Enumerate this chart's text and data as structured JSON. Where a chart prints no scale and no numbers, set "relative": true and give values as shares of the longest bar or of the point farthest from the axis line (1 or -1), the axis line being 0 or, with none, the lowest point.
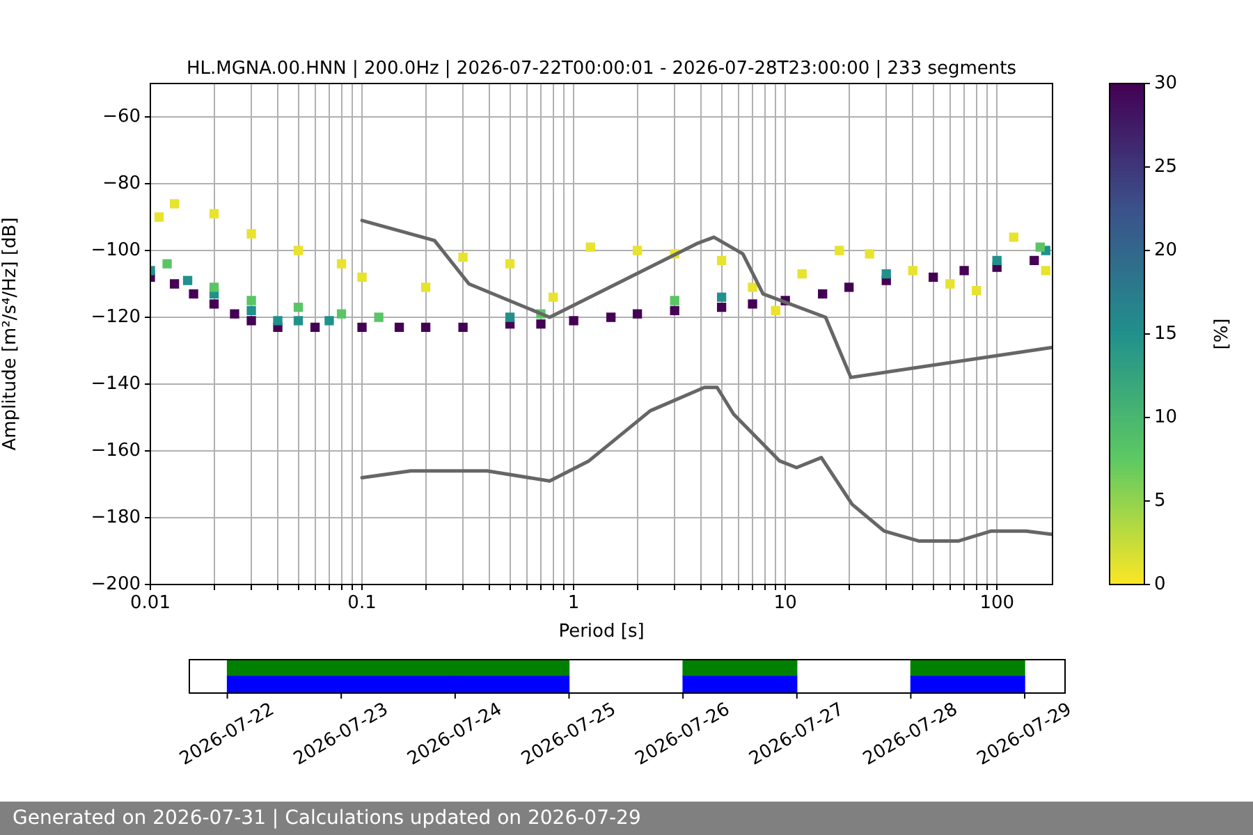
{
  "chart_data": [
    {
      "type": "scatter",
      "title": "HL.MGNA.00.HNN | 200.0Hz | 2026-07-22T00:00:01 - 2026-07-28T23:00:00 | 233 segments",
      "xlabel": "Period [s]",
      "ylabel": "Amplitude [m²/s⁴/Hz] [dB]",
      "clabel": "[%]",
      "log": "x",
      "grid": true,
      "xlim": [
        0.01,
        183
      ],
      "ylim": [
        -200,
        -50
      ],
      "xticks": [
        {
          "value": 0.01,
          "label": "0.01"
        },
        {
          "value": 0.02,
          "label": null
        },
        {
          "value": 0.03,
          "label": null
        },
        {
          "value": 0.04,
          "label": null
        },
        {
          "value": 0.05,
          "label": null
        },
        {
          "value": 0.06,
          "label": null
        },
        {
          "value": 0.07,
          "label": null
        },
        {
          "value": 0.08,
          "label": null
        },
        {
          "value": 0.09,
          "label": null
        },
        {
          "value": 0.1,
          "label": "0.1"
        },
        {
          "value": 0.2,
          "label": null
        },
        {
          "value": 0.3,
          "label": null
        },
        {
          "value": 0.4,
          "label": null
        },
        {
          "value": 0.5,
          "label": null
        },
        {
          "value": 0.6,
          "label": null
        },
        {
          "value": 0.7,
          "label": null
        },
        {
          "value": 0.8,
          "label": null
        },
        {
          "value": 0.9,
          "label": null
        },
        {
          "value": 1,
          "label": "1"
        },
        {
          "value": 2,
          "label": null
        },
        {
          "value": 3,
          "label": null
        },
        {
          "value": 4,
          "label": null
        },
        {
          "value": 5,
          "label": null
        },
        {
          "value": 6,
          "label": null
        },
        {
          "value": 7,
          "label": null
        },
        {
          "value": 8,
          "label": null
        },
        {
          "value": 9,
          "label": null
        },
        {
          "value": 10,
          "label": "10"
        },
        {
          "value": 20,
          "label": null
        },
        {
          "value": 30,
          "label": null
        },
        {
          "value": 40,
          "label": null
        },
        {
          "value": 50,
          "label": null
        },
        {
          "value": 60,
          "label": null
        },
        {
          "value": 70,
          "label": null
        },
        {
          "value": 80,
          "label": null
        },
        {
          "value": 90,
          "label": null
        },
        {
          "value": 100,
          "label": "100"
        }
      ],
      "yticks": [
        {
          "value": -200,
          "label": "−200"
        },
        {
          "value": -180,
          "label": "−180"
        },
        {
          "value": -160,
          "label": "−160"
        },
        {
          "value": -140,
          "label": "−140"
        },
        {
          "value": -120,
          "label": "−120"
        },
        {
          "value": -100,
          "label": "−100"
        },
        {
          "value": -80,
          "label": "−80"
        },
        {
          "value": -60,
          "label": "−60"
        }
      ],
      "clim": [
        0,
        30
      ],
      "cticks": [
        0,
        5,
        10,
        15,
        20,
        25,
        30
      ],
      "series": [
        {
          "type": "scatter",
          "marker": "square",
          "x": [
            0.01,
            0.013,
            0.016,
            0.02,
            0.025,
            0.03,
            0.04,
            0.06,
            0.1,
            0.15,
            0.2,
            0.3,
            0.5,
            0.7,
            1,
            1.5,
            2,
            3,
            5,
            7,
            10,
            15,
            20,
            30,
            50,
            70,
            100,
            150,
            0.01,
            0.015,
            0.02,
            0.03,
            0.04,
            0.05,
            0.07,
            0.5,
            5,
            30,
            100,
            170,
            0.012,
            0.02,
            0.03,
            0.05,
            0.08,
            0.12,
            0.7,
            3,
            160,
            0.011,
            0.013,
            0.02,
            0.03,
            0.05,
            0.08,
            0.1,
            0.2,
            0.3,
            0.5,
            0.8,
            1.2,
            2,
            3,
            5,
            7,
            9,
            12,
            18,
            25,
            40,
            60,
            80,
            120,
            170
          ],
          "values": [
            -108,
            -110,
            -113,
            -116,
            -119,
            -121,
            -123,
            -123,
            -123,
            -123,
            -123,
            -123,
            -122,
            -122,
            -121,
            -120,
            -119,
            -118,
            -117,
            -116,
            -115,
            -113,
            -111,
            -109,
            -108,
            -106,
            -105,
            -103,
            -106,
            -109,
            -113,
            -118,
            -121,
            -121,
            -121,
            -120,
            -114,
            -107,
            -103,
            -100,
            -104,
            -111,
            -115,
            -117,
            -119,
            -120,
            -119,
            -115,
            -99,
            -90,
            -86,
            -89,
            -95,
            -100,
            -104,
            -108,
            -111,
            -102,
            -104,
            -114,
            -99,
            -100,
            -101,
            -103,
            -111,
            -118,
            -107,
            -100,
            -101,
            -106,
            -110,
            -112,
            -96,
            -106
          ],
          "colors": [
            "#440154",
            "#440154",
            "#440154",
            "#440154",
            "#440154",
            "#440154",
            "#440154",
            "#440154",
            "#440154",
            "#440154",
            "#440154",
            "#440154",
            "#440154",
            "#440154",
            "#440154",
            "#440154",
            "#440154",
            "#440154",
            "#440154",
            "#440154",
            "#440154",
            "#440154",
            "#440154",
            "#440154",
            "#440154",
            "#440154",
            "#440154",
            "#440154",
            "#21918c",
            "#21918c",
            "#21918c",
            "#21918c",
            "#21918c",
            "#21918c",
            "#21918c",
            "#21918c",
            "#21918c",
            "#21918c",
            "#21918c",
            "#21918c",
            "#5ac565",
            "#5ac565",
            "#5ac565",
            "#5ac565",
            "#5ac565",
            "#5ac565",
            "#5ac565",
            "#5ac565",
            "#5ac565",
            "#e8e32d",
            "#e8e32d",
            "#e8e32d",
            "#e8e32d",
            "#e8e32d",
            "#e8e32d",
            "#e8e32d",
            "#e8e32d",
            "#e8e32d",
            "#e8e32d",
            "#e8e32d",
            "#e8e32d",
            "#e8e32d",
            "#e8e32d",
            "#e8e32d",
            "#e8e32d",
            "#e8e32d",
            "#e8e32d",
            "#e8e32d",
            "#e8e32d",
            "#e8e32d",
            "#e8e32d",
            "#e8e32d",
            "#e8e32d",
            "#e8e32d"
          ],
          "cvalues": [
            30,
            30,
            30,
            30,
            30,
            30,
            30,
            30,
            30,
            30,
            30,
            30,
            30,
            30,
            30,
            30,
            30,
            30,
            30,
            30,
            30,
            30,
            30,
            30,
            30,
            30,
            30,
            30,
            15,
            15,
            15,
            15,
            15,
            15,
            15,
            15,
            15,
            15,
            15,
            15,
            8,
            8,
            8,
            8,
            8,
            8,
            8,
            8,
            8,
            1,
            1,
            1,
            1,
            1,
            1,
            1,
            1,
            1,
            1,
            1,
            1,
            1,
            1,
            1,
            1,
            1,
            1,
            1,
            1,
            1,
            1,
            1,
            1,
            1
          ]
        },
        {
          "type": "line",
          "color": "#666666",
          "x": [
            0.1,
            0.22,
            0.32,
            0.77,
            3.8,
            4.6,
            6.3,
            7.85,
            15.5,
            20.4,
            183
          ],
          "values": [
            -91,
            -97,
            -110,
            -120,
            -98,
            -96,
            -101,
            -113,
            -120,
            -138,
            -129
          ]
        },
        {
          "type": "line",
          "color": "#666666",
          "x": [
            0.1,
            0.17,
            0.39,
            0.77,
            1.18,
            2.3,
            4.15,
            4.76,
            5.7,
            9.4,
            11.3,
            14.8,
            20.7,
            29.3,
            42.9,
            65.5,
            94,
            137,
            183
          ],
          "values": [
            -168,
            -166,
            -166,
            -169,
            -163,
            -148,
            -141,
            -141,
            -149,
            -163,
            -165,
            -162,
            -176,
            -184,
            -187,
            -187,
            -184,
            -184,
            -185
          ]
        }
      ]
    },
    {
      "type": "bar",
      "stacked": true,
      "relative": true,
      "x": [
        "2026-07-22T12:00",
        "2026-07-23T12:00",
        "2026-07-24T12:00",
        "2026-07-26T12:00",
        "2026-07-28T12:00"
      ],
      "tick_labels": "x",
      "xlim": [
        "2026-07-21T16:00",
        "2026-07-29T08:30"
      ],
      "xticks": [
        "2026-07-22",
        "2026-07-23",
        "2026-07-24",
        "2026-07-25",
        "2026-07-26",
        "2026-07-27",
        "2026-07-28",
        "2026-07-29"
      ],
      "annotations": [
        "Generated on 2026-07-31 | Calculations updated on 2026-07-29"
      ],
      "series": [
        {
          "color": "#0000ff",
          "values": [
            0.5,
            0.5,
            0.5,
            0.5,
            0.5
          ]
        },
        {
          "color": "#008000",
          "values": [
            0.5,
            0.5,
            0.5,
            0.5,
            0.5
          ]
        }
      ]
    }
  ]
}
